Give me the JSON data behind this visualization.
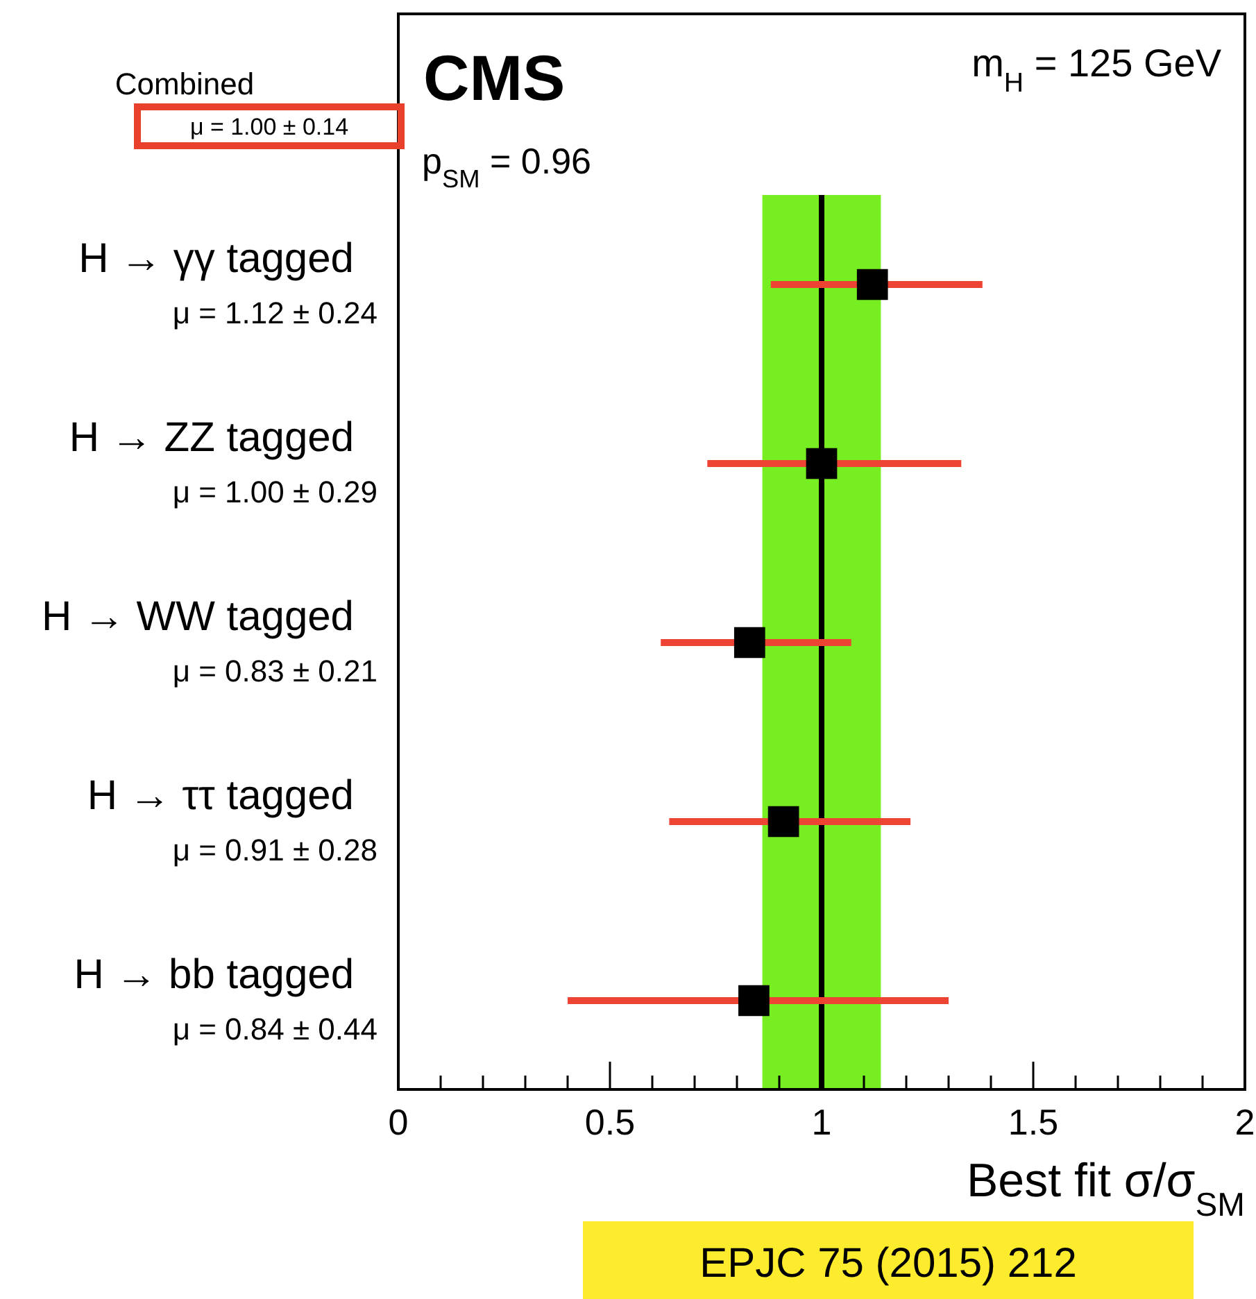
{
  "chart_data": {
    "type": "scatter",
    "orientation": "horizontal",
    "xlabel": "Best fit σ/σ$_{SM}$",
    "categories": [
      "H → γγ tagged",
      "H → ZZ tagged",
      "H → WW tagged",
      "H → ττ tagged",
      "H → bb tagged"
    ],
    "values": [
      1.12,
      1.0,
      0.83,
      0.91,
      0.84
    ],
    "value_labels": [
      "μ = 1.12 ± 0.24",
      "μ = 1.00 ± 0.29",
      "μ = 0.83 ± 0.21",
      "μ = 0.91 ± 0.28",
      "μ = 0.84 ± 0.44"
    ],
    "errors": [
      [
        0.88,
        1.38
      ],
      [
        0.73,
        1.33
      ],
      [
        0.62,
        1.07
      ],
      [
        0.64,
        1.21
      ],
      [
        0.4,
        1.3
      ]
    ],
    "color": "#000000",
    "marker": "square",
    "xlim": [
      0,
      2
    ],
    "xticks": [
      0,
      {
        "value": 0.1,
        "label": null
      },
      {
        "value": 0.2,
        "label": null
      },
      {
        "value": 0.3,
        "label": null
      },
      {
        "value": 0.4,
        "label": null
      },
      0.5,
      {
        "value": 0.6,
        "label": null
      },
      {
        "value": 0.7,
        "label": null
      },
      {
        "value": 0.8,
        "label": null
      },
      {
        "value": 0.9,
        "label": null
      },
      1,
      {
        "value": 1.1,
        "label": null
      },
      {
        "value": 1.2,
        "label": null
      },
      {
        "value": 1.3,
        "label": null
      },
      {
        "value": 1.4,
        "label": null
      },
      1.5,
      {
        "value": 1.6,
        "label": null
      },
      {
        "value": 1.7,
        "label": null
      },
      {
        "value": 1.8,
        "label": null
      },
      {
        "value": 1.9,
        "label": null
      },
      2
    ],
    "bands": [
      {
        "axis": "x",
        "from": 0.86,
        "to": 1.14,
        "color": "#77ee22"
      }
    ],
    "ref_lines": [
      {
        "axis": "x",
        "value": 1.0,
        "color": "#000000"
      }
    ],
    "grid": false,
    "annotations": [
      "CMS",
      "m$_{H}$ = 125 GeV",
      "p$_{SM}$ = 0.96",
      "Combined",
      "μ = 1.00 ± 0.14",
      "EPJC 75 (2015) 212"
    ]
  }
}
